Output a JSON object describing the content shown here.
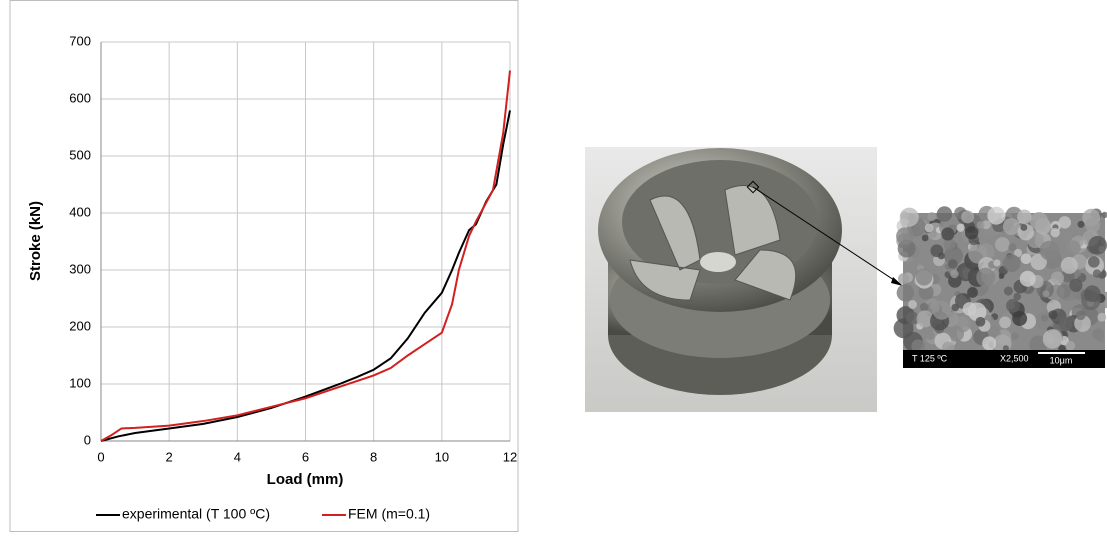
{
  "chart_data": {
    "type": "line",
    "xlabel": "Load (mm)",
    "ylabel": "Stroke (kN)",
    "xlim": [
      0,
      12
    ],
    "ylim": [
      0,
      700
    ],
    "xticks": [
      0,
      2,
      4,
      6,
      8,
      10,
      12
    ],
    "yticks": [
      0,
      100,
      200,
      300,
      400,
      500,
      600,
      700
    ],
    "grid": true,
    "legend": "bottom",
    "series": [
      {
        "name": "experimental (T 100 ºC)",
        "color": "#000000",
        "x": [
          0,
          0.5,
          1,
          2,
          3,
          4,
          5,
          6,
          7,
          7.5,
          8,
          8.5,
          9,
          9.5,
          10,
          10.3,
          10.5,
          10.8,
          11,
          11.3,
          11.6,
          11.8,
          12
        ],
        "values": [
          0,
          8,
          14,
          22,
          30,
          42,
          58,
          78,
          100,
          112,
          125,
          145,
          180,
          225,
          260,
          300,
          330,
          370,
          380,
          420,
          450,
          520,
          580
        ]
      },
      {
        "name": "FEM (m=0.1)",
        "color": "#d21f1f",
        "x": [
          0,
          0.3,
          0.6,
          1,
          2,
          3,
          4,
          5,
          6,
          7,
          8,
          8.5,
          9,
          9.5,
          10,
          10.3,
          10.5,
          10.8,
          11,
          11.5,
          11.8,
          12
        ],
        "values": [
          0,
          10,
          22,
          23,
          27,
          35,
          45,
          60,
          75,
          95,
          115,
          128,
          150,
          170,
          190,
          240,
          300,
          360,
          385,
          440,
          540,
          650
        ]
      }
    ]
  },
  "micrograph": {
    "temperature": "T 125 ºC",
    "magnification": "X2,500",
    "scale": "10μm"
  }
}
